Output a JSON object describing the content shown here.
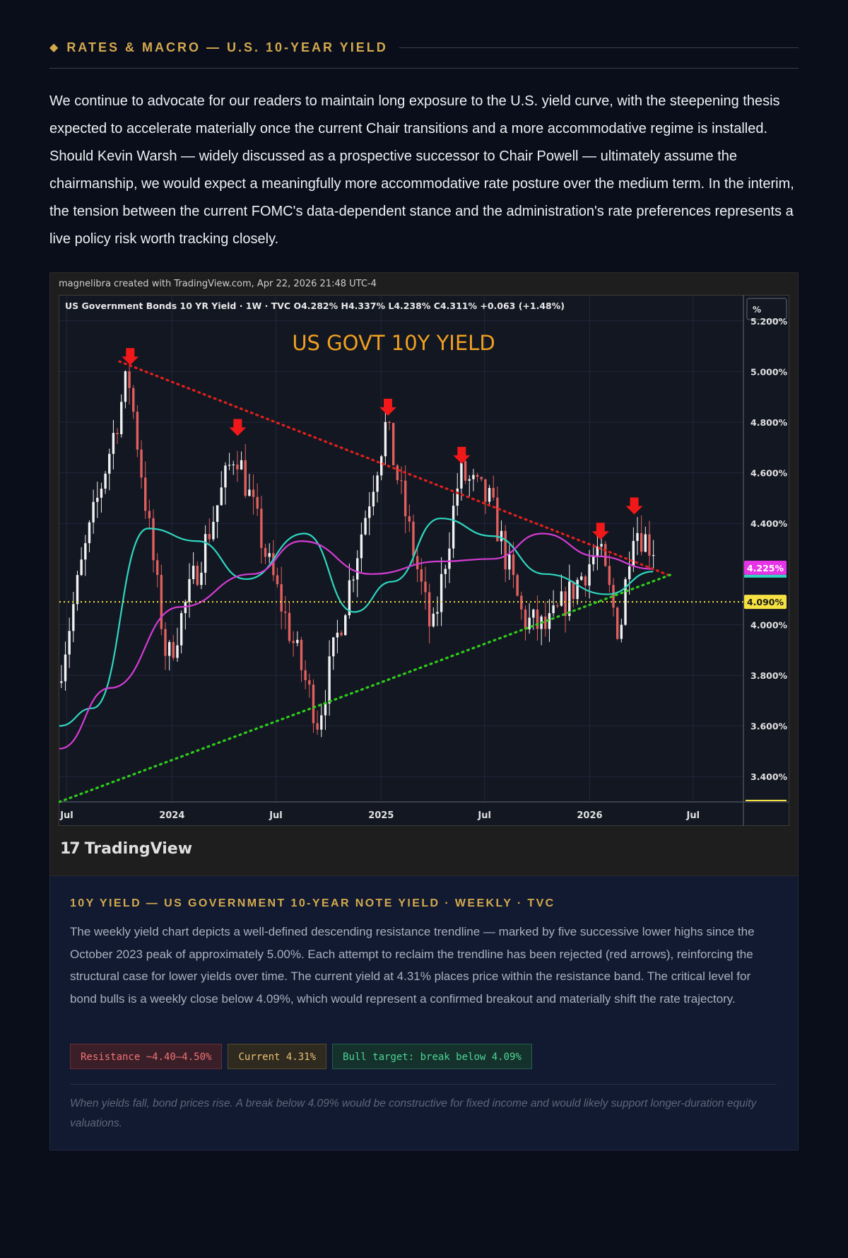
{
  "section": {
    "icon": "diamond-icon",
    "title": "RATES & MACRO — U.S. 10-YEAR YIELD"
  },
  "lede": "We continue to advocate for our readers to maintain long exposure to the U.S. yield curve, with the steepening thesis expected to accelerate materially once the current Chair transitions and a more accommodative regime is installed. Should Kevin Warsh — widely discussed as a prospective successor to Chair Powell — ultimately assume the chairmanship, we would expect a meaningfully more accommodative rate posture over the medium term. In the interim, the tension between the current FOMC's data-dependent stance and the administration's rate preferences represents a live policy risk worth tracking closely.",
  "chart_card": {
    "credit": "magnelibra created with TradingView.com, Apr 22, 2026 21:48 UTC-4",
    "logo_text": "TradingView",
    "logo_icon": "tradingview-logo-icon"
  },
  "chart_data": {
    "type": "candlestick",
    "symbol_line": "US Government Bonds 10 YR Yield · 1W · TVC  O4.282%  H4.337%  L4.238%  C4.311%  +0.063 (+1.48%)",
    "title": "US GOVT 10Y YIELD",
    "unit_button": "%",
    "y_ticks": [
      "5.200%",
      "5.000%",
      "4.800%",
      "4.600%",
      "4.400%",
      "4.000%",
      "3.800%",
      "3.600%",
      "3.400%"
    ],
    "y_tick_values": [
      5.2,
      5.0,
      4.8,
      4.6,
      4.4,
      4.0,
      3.8,
      3.6,
      3.4
    ],
    "ylim": [
      3.3,
      5.3
    ],
    "x_ticks": [
      "Jul",
      "2024",
      "Jul",
      "2025",
      "Jul",
      "2026",
      "Jul"
    ],
    "x_tick_dates": [
      "2023-07-01",
      "2024-01-01",
      "2024-07-01",
      "2025-01-01",
      "2025-07-01",
      "2026-01-01",
      "2026-07-01"
    ],
    "xlim": [
      "2023-06-18",
      "2026-09-27"
    ],
    "price_labels": [
      {
        "text": "4.225%",
        "value": 4.225,
        "color": "#e633e6"
      },
      {
        "text": "4.090%",
        "value": 4.09,
        "color": "#f5e142"
      }
    ],
    "grid": true,
    "ohlc_description": "weekly candles, approx. values",
    "key_points": [
      {
        "date": "2023-06-18",
        "value": 3.77
      },
      {
        "date": "2023-08-01",
        "value": 4.25
      },
      {
        "date": "2023-10-20",
        "value": 4.99
      },
      {
        "date": "2023-12-27",
        "value": 3.85
      },
      {
        "date": "2024-04-25",
        "value": 4.7
      },
      {
        "date": "2024-06-20",
        "value": 4.25
      },
      {
        "date": "2024-09-16",
        "value": 3.62
      },
      {
        "date": "2025-01-13",
        "value": 4.79
      },
      {
        "date": "2025-04-04",
        "value": 3.95
      },
      {
        "date": "2025-05-22",
        "value": 4.6
      },
      {
        "date": "2025-07-15",
        "value": 4.48
      },
      {
        "date": "2025-09-10",
        "value": 4.02
      },
      {
        "date": "2025-10-22",
        "value": 3.98
      },
      {
        "date": "2026-01-20",
        "value": 4.3
      },
      {
        "date": "2026-02-26",
        "value": 3.96
      },
      {
        "date": "2026-03-20",
        "value": 4.4
      },
      {
        "date": "2026-04-22",
        "value": 4.31
      }
    ],
    "moving_averages": [
      {
        "color": "#2fd6c0",
        "points": [
          {
            "date": "2023-06-18",
            "value": 3.6
          },
          {
            "date": "2023-08-15",
            "value": 3.67
          },
          {
            "date": "2023-11-20",
            "value": 4.38
          },
          {
            "date": "2024-02-15",
            "value": 4.33
          },
          {
            "date": "2024-05-10",
            "value": 4.18
          },
          {
            "date": "2024-08-20",
            "value": 4.36
          },
          {
            "date": "2024-11-15",
            "value": 4.05
          },
          {
            "date": "2025-01-20",
            "value": 4.17
          },
          {
            "date": "2025-04-15",
            "value": 4.42
          },
          {
            "date": "2025-07-15",
            "value": 4.35
          },
          {
            "date": "2025-10-15",
            "value": 4.2
          },
          {
            "date": "2026-02-01",
            "value": 4.12
          },
          {
            "date": "2026-04-22",
            "value": 4.21
          }
        ]
      },
      {
        "color": "#d43cd4",
        "points": [
          {
            "date": "2023-06-18",
            "value": 3.51
          },
          {
            "date": "2023-09-15",
            "value": 3.75
          },
          {
            "date": "2024-01-15",
            "value": 4.07
          },
          {
            "date": "2024-05-20",
            "value": 4.2
          },
          {
            "date": "2024-08-15",
            "value": 4.33
          },
          {
            "date": "2024-12-15",
            "value": 4.2
          },
          {
            "date": "2025-04-15",
            "value": 4.25
          },
          {
            "date": "2025-07-15",
            "value": 4.26
          },
          {
            "date": "2025-10-10",
            "value": 4.36
          },
          {
            "date": "2026-01-15",
            "value": 4.27
          },
          {
            "date": "2026-04-22",
            "value": 4.22
          }
        ]
      }
    ],
    "trendlines": [
      {
        "name": "",
        "color": "#e0201c",
        "start": {
          "date": "2023-10-01",
          "value": 5.04
        },
        "end": {
          "date": "2026-05-26",
          "value": 4.19
        }
      },
      {
        "name": "",
        "color": "#2ecc1a",
        "start": {
          "date": "2023-06-18",
          "value": 3.3
        },
        "end": {
          "date": "2026-05-26",
          "value": 4.2
        }
      }
    ],
    "horizontal_line": {
      "value": 4.09,
      "color": "#f5e142"
    },
    "rejection_arrows": [
      {
        "date": "2023-10-20",
        "value": 5.02
      },
      {
        "date": "2024-04-25",
        "value": 4.74
      },
      {
        "date": "2025-01-13",
        "value": 4.82
      },
      {
        "date": "2025-05-22",
        "value": 4.63
      },
      {
        "date": "2026-01-20",
        "value": 4.33
      },
      {
        "date": "2026-03-20",
        "value": 4.43
      }
    ]
  },
  "analysis": {
    "title": "10Y YIELD — US GOVERNMENT 10-YEAR NOTE YIELD · WEEKLY · TVC",
    "body": "The weekly yield chart depicts a well-defined descending resistance trendline — marked by five successive lower highs since the October 2023 peak of approximately 5.00%. Each attempt to reclaim the trendline has been rejected (red arrows), reinforcing the structural case for lower yields over time. The current yield at 4.31% places price within the resistance band. The critical level for bond bulls is a weekly close below 4.09%, which would represent a confirmed breakout and materially shift the rate trajectory.",
    "tags": [
      {
        "label": "Resistance ~4.40–4.50%",
        "color": "#f07575"
      },
      {
        "label": "Current 4.31%",
        "color": "#e8c070"
      },
      {
        "label": "Bull target: break below 4.09%",
        "color": "#4fd496"
      }
    ],
    "footnote": "When yields fall, bond prices rise. A break below 4.09% would be constructive for fixed income and would likely support longer-duration equity valuations."
  }
}
